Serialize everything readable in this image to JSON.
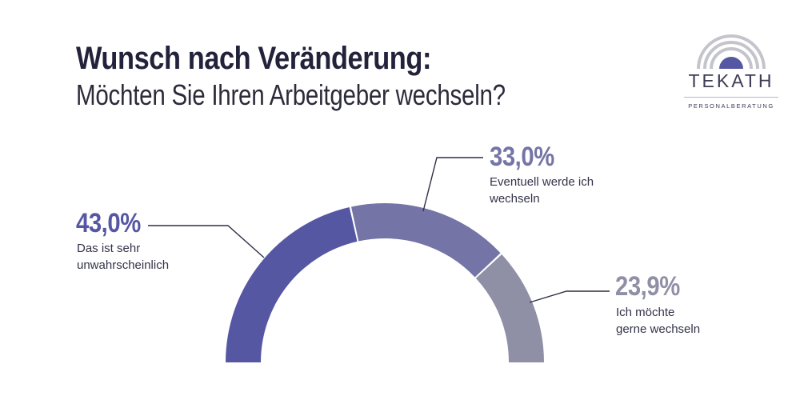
{
  "header": {
    "title": "Wunsch nach Veränderung:",
    "subtitle": "Möchten Sie Ihren Arbeitgeber wechseln?"
  },
  "logo": {
    "name": "TEKATH",
    "tagline": "PERSONALBERATUNG",
    "icon": "rainbow-arch-icon"
  },
  "chart_data": {
    "type": "pie",
    "variant": "semi-donut",
    "title": "",
    "unit": "%",
    "slices": [
      {
        "label_lines": [
          "Das ist sehr",
          "unwahrscheinlich"
        ],
        "value": 43.0,
        "value_label": "43,0%",
        "color": "#5657a3"
      },
      {
        "label_lines": [
          "Eventuell werde ich",
          "wechseln"
        ],
        "value": 33.0,
        "value_label": "33,0%",
        "color": "#7474a6"
      },
      {
        "label_lines": [
          "Ich möchte",
          "gerne wechseln"
        ],
        "value": 23.9,
        "value_label": "23,9%",
        "color": "#8f8fa6"
      }
    ],
    "legend": "none"
  }
}
